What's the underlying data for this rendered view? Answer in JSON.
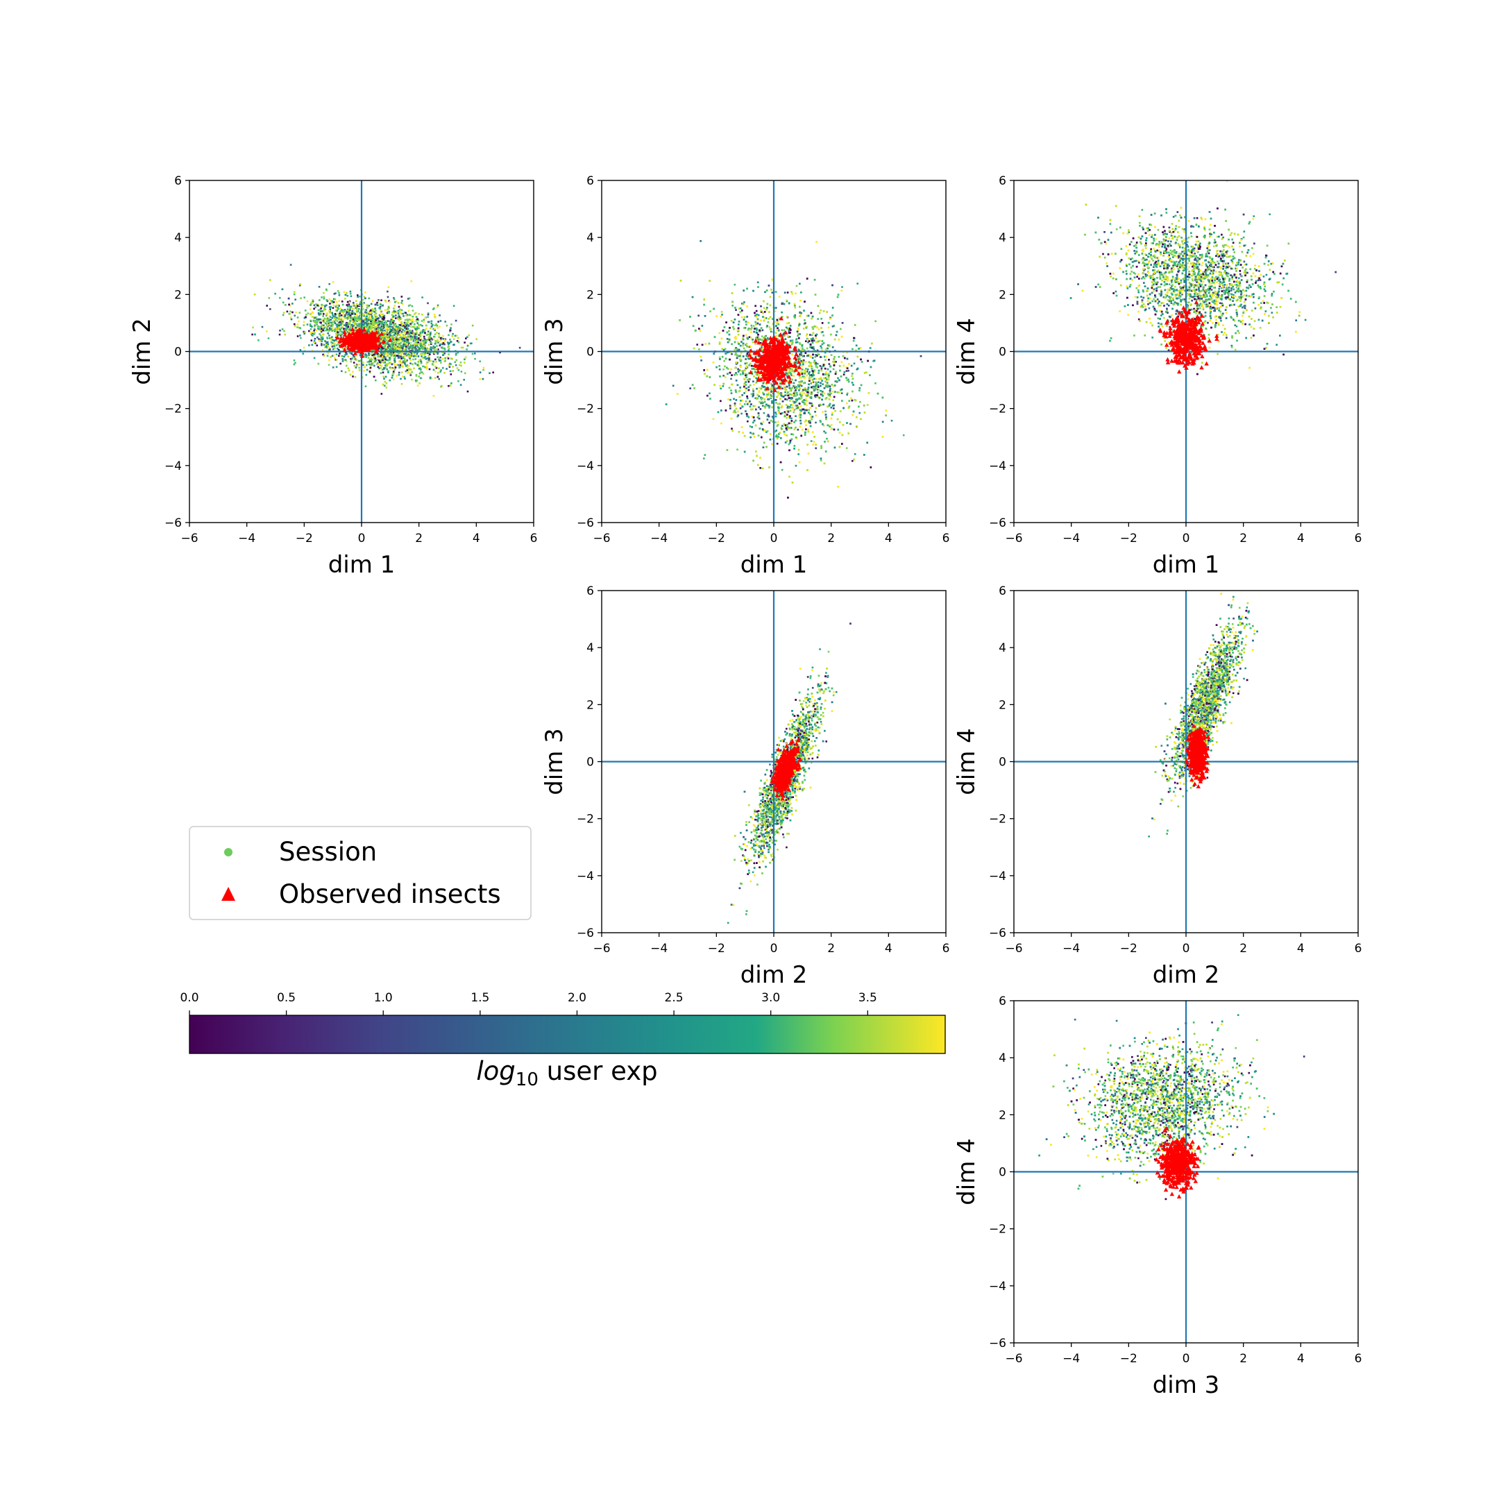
{
  "figure": {
    "legend": {
      "session_label": "Session",
      "insects_label": "Observed insects"
    },
    "colorbar": {
      "label_italic": "log",
      "label_sub": "10",
      "label_rest": " user exp",
      "ticks": [
        "0.0",
        "0.5",
        "1.0",
        "1.5",
        "2.0",
        "2.5",
        "3.0",
        "3.5"
      ]
    }
  },
  "chart_data": [
    {
      "type": "scatter",
      "id": "p12",
      "xlabel": "dim 1",
      "ylabel": "dim 2",
      "xlim": [
        -6,
        6
      ],
      "ylim": [
        -6,
        6
      ],
      "xticks": [
        "-6",
        "-4",
        "-2",
        "0",
        "2",
        "4",
        "6"
      ],
      "yticks": [
        "-6",
        "-4",
        "-2",
        "0",
        "2",
        "4",
        "6"
      ],
      "series": [
        {
          "name": "Session",
          "cloud": {
            "cx": 0.6,
            "cy": 0.5,
            "sx": 1.3,
            "sy": 0.65,
            "rho": -0.45,
            "n": 3000
          }
        },
        {
          "name": "Observed insects",
          "cloud": {
            "cx": 0.0,
            "cy": 0.35,
            "sx": 0.28,
            "sy": 0.15,
            "rho": 0.0,
            "n": 450
          }
        }
      ]
    },
    {
      "type": "scatter",
      "id": "p13",
      "xlabel": "dim 1",
      "ylabel": "dim 3",
      "xlim": [
        -6,
        6
      ],
      "ylim": [
        -6,
        6
      ],
      "xticks": [
        "-6",
        "-4",
        "-2",
        "0",
        "2",
        "4",
        "6"
      ],
      "yticks": [
        "-6",
        "-4",
        "-2",
        "0",
        "2",
        "4",
        "6"
      ],
      "series": [
        {
          "name": "Session",
          "cloud": {
            "cx": 0.4,
            "cy": -0.8,
            "sx": 1.25,
            "sy": 1.3,
            "rho": -0.2,
            "n": 3400
          }
        },
        {
          "name": "Observed insects",
          "cloud": {
            "cx": 0.0,
            "cy": -0.3,
            "sx": 0.3,
            "sy": 0.38,
            "rho": 0.0,
            "n": 450
          }
        }
      ]
    },
    {
      "type": "scatter",
      "id": "p14",
      "xlabel": "dim 1",
      "ylabel": "dim 4",
      "xlim": [
        -6,
        6
      ],
      "ylim": [
        -6,
        6
      ],
      "xticks": [
        "-6",
        "-4",
        "-2",
        "0",
        "2",
        "4",
        "6"
      ],
      "yticks": [
        "-6",
        "-4",
        "-2",
        "0",
        "2",
        "4",
        "6"
      ],
      "series": [
        {
          "name": "Session",
          "cloud": {
            "cx": 0.3,
            "cy": 2.5,
            "sx": 1.3,
            "sy": 1.0,
            "rho": -0.25,
            "n": 3400
          }
        },
        {
          "name": "Observed insects",
          "cloud": {
            "cx": 0.0,
            "cy": 0.4,
            "sx": 0.3,
            "sy": 0.4,
            "rho": 0.0,
            "n": 450
          }
        }
      ]
    },
    {
      "type": "scatter",
      "id": "p23",
      "xlabel": "dim 2",
      "ylabel": "dim 3",
      "xlim": [
        -6,
        6
      ],
      "ylim": [
        -6,
        6
      ],
      "xticks": [
        "-6",
        "-4",
        "-2",
        "0",
        "2",
        "4",
        "6"
      ],
      "yticks": [
        "-6",
        "-4",
        "-2",
        "0",
        "2",
        "4",
        "6"
      ],
      "series": [
        {
          "name": "Session",
          "cloud": {
            "cx": 0.4,
            "cy": -0.6,
            "sx": 0.6,
            "sy": 1.4,
            "rho": 0.85,
            "n": 3000
          }
        },
        {
          "name": "Observed insects",
          "cloud": {
            "cx": 0.4,
            "cy": -0.3,
            "sx": 0.18,
            "sy": 0.35,
            "rho": 0.5,
            "n": 400
          }
        }
      ]
    },
    {
      "type": "scatter",
      "id": "p24",
      "xlabel": "dim 2",
      "ylabel": "dim 4",
      "xlim": [
        -6,
        6
      ],
      "ylim": [
        -6,
        6
      ],
      "xticks": [
        "-6",
        "-4",
        "-2",
        "0",
        "2",
        "4",
        "6"
      ],
      "yticks": [
        "-6",
        "-4",
        "-2",
        "0",
        "2",
        "4",
        "6"
      ],
      "series": [
        {
          "name": "Session",
          "cloud": {
            "cx": 0.7,
            "cy": 2.0,
            "sx": 0.6,
            "sy": 1.3,
            "rho": 0.8,
            "n": 3000
          }
        },
        {
          "name": "Observed insects",
          "cloud": {
            "cx": 0.4,
            "cy": 0.3,
            "sx": 0.15,
            "sy": 0.4,
            "rho": 0.0,
            "n": 400
          }
        }
      ]
    },
    {
      "type": "scatter",
      "id": "p34",
      "xlabel": "dim 3",
      "ylabel": "dim 4",
      "xlim": [
        -6,
        6
      ],
      "ylim": [
        -6,
        6
      ],
      "xticks": [
        "-6",
        "-4",
        "-2",
        "0",
        "2",
        "4",
        "6"
      ],
      "yticks": [
        "-6",
        "-4",
        "-2",
        "0",
        "2",
        "4",
        "6"
      ],
      "series": [
        {
          "name": "Session",
          "cloud": {
            "cx": -0.8,
            "cy": 2.4,
            "sx": 1.3,
            "sy": 1.0,
            "rho": 0.1,
            "n": 3400
          }
        },
        {
          "name": "Observed insects",
          "cloud": {
            "cx": -0.3,
            "cy": 0.3,
            "sx": 0.3,
            "sy": 0.4,
            "rho": 0.0,
            "n": 450
          }
        }
      ]
    }
  ]
}
